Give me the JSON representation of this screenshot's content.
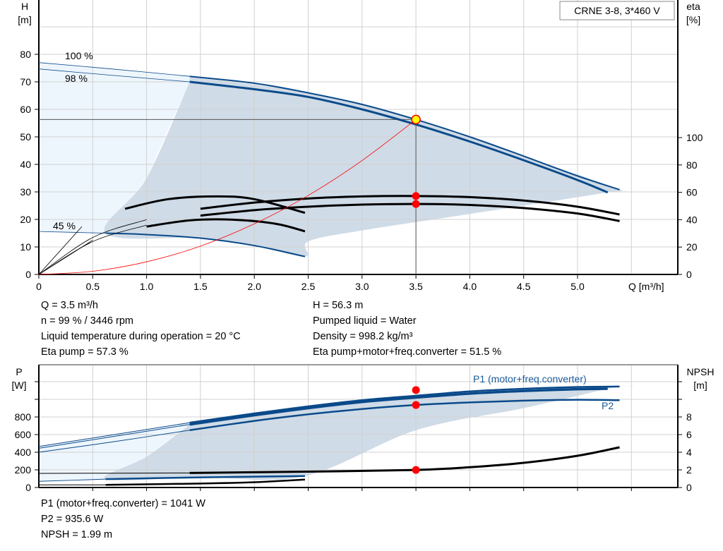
{
  "chart_data": [
    {
      "type": "line",
      "title_box": "CRNE 3-8, 3*460 V",
      "ylabel": "H",
      "yunit": "[m]",
      "y2label": "eta",
      "y2unit": "[%]",
      "xlabel": "Q [m³/h]",
      "xlim": [
        0,
        5.9
      ],
      "ylim": [
        0,
        90
      ],
      "y2lim": [
        0,
        200
      ],
      "xticks": [
        "0",
        "0.5",
        "1.0",
        "1.5",
        "2.0",
        "2.5",
        "3.0",
        "3.5",
        "4.0",
        "4.5",
        "5.0"
      ],
      "yticks": [
        "0",
        "10",
        "20",
        "30",
        "40",
        "50",
        "60",
        "70",
        "80"
      ],
      "y2ticks": [
        "0",
        "20",
        "40",
        "60",
        "80",
        "100"
      ],
      "grid": true,
      "speed_labels": [
        "100 %",
        "98 %",
        "45 %"
      ],
      "colors": {
        "head": "#0a4a8a",
        "eta": "#000000",
        "system": "#ff0000",
        "range": "#cfdbe7",
        "light": "#eef6fd",
        "point": "#ffff00"
      },
      "series": [
        {
          "name": "100 %",
          "axis": "H",
          "points": [
            [
              0,
              77
            ],
            [
              0.7,
              74.6
            ],
            [
              1.4,
              72
            ],
            [
              2,
              69.5
            ],
            [
              2.5,
              66
            ],
            [
              3,
              61.8
            ],
            [
              3.5,
              56.3
            ],
            [
              4,
              50
            ],
            [
              4.5,
              43
            ],
            [
              5,
              35.8
            ],
            [
              5.39,
              30.8
            ]
          ]
        },
        {
          "name": "98 %",
          "axis": "H",
          "points": [
            [
              0,
              74.7
            ],
            [
              0.7,
              72.3
            ],
            [
              1.4,
              70
            ],
            [
              2,
              67.3
            ],
            [
              2.5,
              64.5
            ],
            [
              3,
              60
            ],
            [
              3.5,
              54.5
            ],
            [
              4,
              48.3
            ],
            [
              4.5,
              41.5
            ],
            [
              5,
              34.3
            ],
            [
              5.28,
              29.8
            ]
          ]
        },
        {
          "name": "45 %",
          "axis": "H",
          "points": [
            [
              0,
              15.6
            ],
            [
              0.62,
              15
            ],
            [
              1,
              14.5
            ],
            [
              1.5,
              13.2
            ],
            [
              2,
              10.5
            ],
            [
              2.47,
              6.5
            ]
          ]
        },
        {
          "axis": "eta",
          "points": [
            [
              0,
              0
            ],
            [
              0.5,
              27
            ],
            [
              1,
              40
            ],
            [
              1.5,
              48
            ],
            [
              2,
              52.5
            ],
            [
              2.5,
              55.5
            ],
            [
              3,
              57
            ],
            [
              3.5,
              57.3
            ],
            [
              4,
              56.5
            ],
            [
              4.5,
              54
            ],
            [
              5,
              49.5
            ],
            [
              5.39,
              43.8
            ]
          ]
        },
        {
          "axis": "eta",
          "points": [
            [
              0,
              0
            ],
            [
              0.5,
              24
            ],
            [
              1,
              36
            ],
            [
              1.5,
              43
            ],
            [
              2,
              47
            ],
            [
              2.5,
              49.5
            ],
            [
              3,
              51
            ],
            [
              3.5,
              51.5
            ],
            [
              4,
              50.8
            ],
            [
              4.5,
              48.5
            ],
            [
              5,
              44.5
            ],
            [
              5.39,
              39
            ]
          ]
        },
        {
          "axis": "eta",
          "points": [
            [
              0,
              0
            ],
            [
              0.4,
              35
            ],
            [
              0.8,
              48
            ],
            [
              1.2,
              55
            ],
            [
              1.65,
              57
            ],
            [
              2,
              55
            ],
            [
              2.47,
              45
            ]
          ]
        },
        {
          "axis": "eta",
          "points": [
            [
              0,
              0
            ],
            [
              0.5,
              25
            ],
            [
              1,
              35
            ],
            [
              1.4,
              39.5
            ],
            [
              1.8,
              40
            ],
            [
              2.2,
              37
            ],
            [
              2.47,
              31.5
            ]
          ]
        },
        {
          "name": "system",
          "axis": "H",
          "points": [
            [
              0,
              0
            ],
            [
              0.5,
              1.15
            ],
            [
              1,
              4.6
            ],
            [
              1.5,
              10.3
            ],
            [
              2,
              18.4
            ],
            [
              2.5,
              28.7
            ],
            [
              3,
              41.4
            ],
            [
              3.5,
              56.3
            ]
          ]
        }
      ],
      "duty_point": {
        "Q": 3.5,
        "H": 56.3,
        "eta_pump": 57.3,
        "eta_total": 51.5
      },
      "range_polygon": [
        [
          1.4,
          72
        ],
        [
          2.5,
          66
        ],
        [
          3.5,
          56.3
        ],
        [
          4.5,
          43
        ],
        [
          5.39,
          30.8
        ],
        [
          5.28,
          29.8
        ],
        [
          4,
          22
        ],
        [
          3,
          16
        ],
        [
          2.5,
          12
        ],
        [
          2.47,
          6.5
        ],
        [
          2,
          10.5
        ],
        [
          1.5,
          13.2
        ],
        [
          0.62,
          15
        ],
        [
          1,
          35
        ],
        [
          1.4,
          70
        ]
      ],
      "light_polygon": [
        [
          0,
          77
        ],
        [
          1.4,
          72
        ],
        [
          1.4,
          70
        ],
        [
          1,
          35
        ],
        [
          0.62,
          15
        ],
        [
          0,
          15.6
        ]
      ]
    },
    {
      "type": "line",
      "ylabel": "P",
      "yunit": "[W]",
      "y2label": "NPSH",
      "y2unit": "[m]",
      "xlim": [
        0,
        5.9
      ],
      "ylim": [
        0,
        1400
      ],
      "y2lim": [
        0,
        14
      ],
      "yticks": [
        "0",
        "200",
        "400",
        "600",
        "800"
      ],
      "y2ticks": [
        "0",
        "2",
        "4",
        "6",
        "8"
      ],
      "series": [
        {
          "name": "P1 (motor+freq.converter)",
          "axis": "P",
          "points": [
            [
              0,
              465
            ],
            [
              0.7,
              600
            ],
            [
              1.4,
              735
            ],
            [
              2,
              840
            ],
            [
              2.5,
              920
            ],
            [
              3,
              990
            ],
            [
              3.5,
              1041
            ],
            [
              4,
              1090
            ],
            [
              4.5,
              1120
            ],
            [
              5,
              1140
            ],
            [
              5.39,
              1145
            ]
          ]
        },
        {
          "axis": "P",
          "points": [
            [
              0,
              445
            ],
            [
              0.7,
              580
            ],
            [
              1.4,
              715
            ],
            [
              2,
              820
            ],
            [
              2.5,
              900
            ],
            [
              3,
              970
            ],
            [
              3.5,
              1020
            ],
            [
              4,
              1065
            ],
            [
              4.5,
              1095
            ],
            [
              5,
              1115
            ],
            [
              5.28,
              1120
            ]
          ]
        },
        {
          "name": "P2",
          "axis": "P",
          "points": [
            [
              0,
              400
            ],
            [
              0.7,
              520
            ],
            [
              1.4,
              650
            ],
            [
              2,
              755
            ],
            [
              2.5,
              830
            ],
            [
              3,
              890
            ],
            [
              3.5,
              935.6
            ],
            [
              4,
              965
            ],
            [
              4.5,
              985
            ],
            [
              5,
              995
            ],
            [
              5.39,
              990
            ]
          ]
        },
        {
          "axis": "P",
          "points": [
            [
              0,
              70
            ],
            [
              0.62,
              95
            ],
            [
              1.5,
              115
            ],
            [
              2.47,
              130
            ]
          ]
        },
        {
          "axis": "NPSH",
          "points": [
            [
              0,
              1.6
            ],
            [
              1.4,
              1.65
            ],
            [
              2.5,
              1.8
            ],
            [
              3.5,
              1.99
            ],
            [
              4,
              2.3
            ],
            [
              4.5,
              2.8
            ],
            [
              5,
              3.6
            ],
            [
              5.39,
              4.56
            ]
          ]
        },
        {
          "axis": "NPSH",
          "points": [
            [
              0,
              0.3
            ],
            [
              0.62,
              0.3
            ],
            [
              1.5,
              0.45
            ],
            [
              2,
              0.6
            ],
            [
              2.47,
              0.9
            ]
          ]
        }
      ],
      "range_polygon": [
        [
          1.4,
          735
        ],
        [
          3.5,
          1041
        ],
        [
          5.39,
          1145
        ],
        [
          5.28,
          1120
        ],
        [
          4.5,
          900
        ],
        [
          3.5,
          650
        ],
        [
          2.47,
          130
        ],
        [
          1.5,
          115
        ],
        [
          0.62,
          95
        ],
        [
          1,
          350
        ],
        [
          1.4,
          715
        ]
      ],
      "light_polygon": [
        [
          0,
          465
        ],
        [
          1.4,
          735
        ],
        [
          1.4,
          715
        ],
        [
          1,
          350
        ],
        [
          0.62,
          95
        ],
        [
          0,
          70
        ]
      ]
    }
  ],
  "info_top": [
    "Q = 3.5 m³/h",
    "n = 99 % / 3446 rpm",
    "Liquid temperature during operation = 20 °C",
    "Eta pump = 57.3 %",
    "H = 56.3 m",
    "Pumped liquid = Water",
    "Density = 998.2 kg/m³",
    "Eta pump+motor+freq.converter = 51.5 %"
  ],
  "info_bottom": [
    "P1 (motor+freq.converter) = 1041 W",
    "P2 = 935.6 W",
    "NPSH = 1.99 m"
  ]
}
